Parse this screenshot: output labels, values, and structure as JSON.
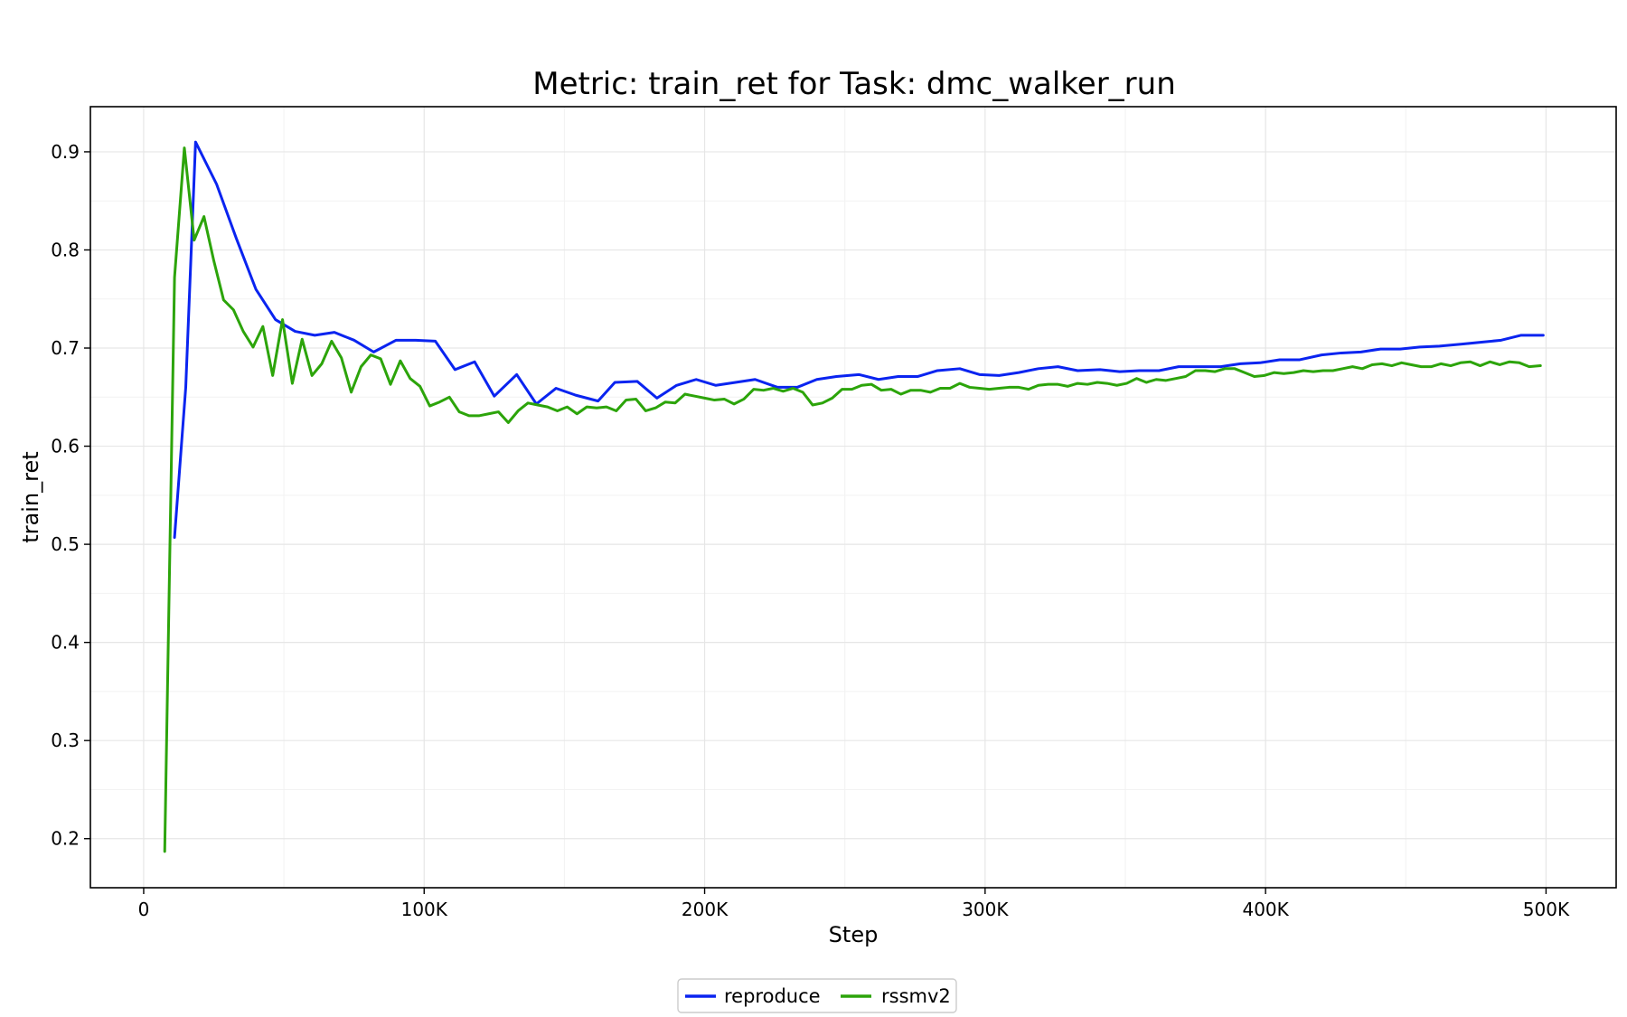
{
  "chart_data": {
    "type": "line",
    "title": "Metric: train_ret for Task: dmc_walker_run",
    "xlabel": "Step",
    "ylabel": "train_ret",
    "xlim": [
      -19000,
      525000
    ],
    "ylim": [
      0.15,
      0.946
    ],
    "grid": true,
    "legend_position": "bottom-center",
    "x_ticks": [
      0,
      100000,
      200000,
      300000,
      400000,
      500000
    ],
    "x_tick_labels": [
      "0",
      "100K",
      "200K",
      "300K",
      "400K",
      "500K"
    ],
    "y_ticks": [
      0.2,
      0.3,
      0.4,
      0.5,
      0.6,
      0.7,
      0.8,
      0.9
    ],
    "y_tick_labels": [
      "0.2",
      "0.3",
      "0.4",
      "0.5",
      "0.6",
      "0.7",
      "0.8",
      "0.9"
    ],
    "series": [
      {
        "name": "reproduce",
        "color": "#0a24f0",
        "points": [
          [
            11000,
            0.507
          ],
          [
            15000,
            0.66
          ],
          [
            18500,
            0.91
          ],
          [
            26000,
            0.867
          ],
          [
            33000,
            0.812
          ],
          [
            40000,
            0.76
          ],
          [
            47000,
            0.729
          ],
          [
            54000,
            0.717
          ],
          [
            61000,
            0.713
          ],
          [
            68000,
            0.716
          ],
          [
            75000,
            0.708
          ],
          [
            82000,
            0.696
          ],
          [
            90000,
            0.708
          ],
          [
            97000,
            0.708
          ],
          [
            104000,
            0.707
          ],
          [
            111000,
            0.678
          ],
          [
            118000,
            0.686
          ],
          [
            125000,
            0.651
          ],
          [
            133000,
            0.673
          ],
          [
            140000,
            0.643
          ],
          [
            147000,
            0.659
          ],
          [
            154000,
            0.652
          ],
          [
            162000,
            0.646
          ],
          [
            168000,
            0.665
          ],
          [
            176000,
            0.666
          ],
          [
            183000,
            0.649
          ],
          [
            190000,
            0.662
          ],
          [
            197000,
            0.668
          ],
          [
            204000,
            0.662
          ],
          [
            211000,
            0.665
          ],
          [
            218000,
            0.668
          ],
          [
            226000,
            0.66
          ],
          [
            233000,
            0.66
          ],
          [
            240000,
            0.668
          ],
          [
            247000,
            0.671
          ],
          [
            255000,
            0.673
          ],
          [
            262000,
            0.668
          ],
          [
            269000,
            0.671
          ],
          [
            276000,
            0.671
          ],
          [
            283000,
            0.677
          ],
          [
            291000,
            0.679
          ],
          [
            298000,
            0.673
          ],
          [
            305000,
            0.672
          ],
          [
            312000,
            0.675
          ],
          [
            319000,
            0.679
          ],
          [
            326000,
            0.681
          ],
          [
            333000,
            0.677
          ],
          [
            341000,
            0.678
          ],
          [
            348000,
            0.676
          ],
          [
            355000,
            0.677
          ],
          [
            362000,
            0.677
          ],
          [
            369000,
            0.681
          ],
          [
            377000,
            0.681
          ],
          [
            384000,
            0.681
          ],
          [
            391000,
            0.684
          ],
          [
            398000,
            0.685
          ],
          [
            405000,
            0.688
          ],
          [
            412000,
            0.688
          ],
          [
            420000,
            0.693
          ],
          [
            427000,
            0.695
          ],
          [
            434000,
            0.696
          ],
          [
            441000,
            0.699
          ],
          [
            448000,
            0.699
          ],
          [
            455000,
            0.701
          ],
          [
            462000,
            0.702
          ],
          [
            470000,
            0.704
          ],
          [
            477000,
            0.706
          ],
          [
            484000,
            0.708
          ],
          [
            491000,
            0.713
          ],
          [
            499000,
            0.713
          ]
        ]
      },
      {
        "name": "rssmv2",
        "color": "#2ca40a",
        "points": [
          [
            7500,
            0.187
          ],
          [
            11000,
            0.772
          ],
          [
            14500,
            0.904
          ],
          [
            18000,
            0.81
          ],
          [
            21500,
            0.834
          ],
          [
            25000,
            0.789
          ],
          [
            28500,
            0.749
          ],
          [
            32000,
            0.739
          ],
          [
            35500,
            0.717
          ],
          [
            39000,
            0.701
          ],
          [
            42500,
            0.722
          ],
          [
            46000,
            0.672
          ],
          [
            49500,
            0.729
          ],
          [
            53000,
            0.664
          ],
          [
            56500,
            0.709
          ],
          [
            60000,
            0.672
          ],
          [
            63500,
            0.684
          ],
          [
            67000,
            0.707
          ],
          [
            70500,
            0.69
          ],
          [
            74000,
            0.655
          ],
          [
            77500,
            0.681
          ],
          [
            81000,
            0.693
          ],
          [
            84500,
            0.689
          ],
          [
            88000,
            0.663
          ],
          [
            91500,
            0.687
          ],
          [
            95000,
            0.669
          ],
          [
            98500,
            0.661
          ],
          [
            102000,
            0.641
          ],
          [
            105500,
            0.645
          ],
          [
            109000,
            0.65
          ],
          [
            112500,
            0.635
          ],
          [
            116000,
            0.631
          ],
          [
            119500,
            0.631
          ],
          [
            123000,
            0.633
          ],
          [
            126500,
            0.635
          ],
          [
            130000,
            0.624
          ],
          [
            133500,
            0.636
          ],
          [
            137000,
            0.644
          ],
          [
            140500,
            0.642
          ],
          [
            144000,
            0.64
          ],
          [
            147500,
            0.636
          ],
          [
            151000,
            0.64
          ],
          [
            154500,
            0.633
          ],
          [
            158000,
            0.64
          ],
          [
            161500,
            0.639
          ],
          [
            165000,
            0.64
          ],
          [
            168500,
            0.636
          ],
          [
            172000,
            0.647
          ],
          [
            175500,
            0.648
          ],
          [
            179000,
            0.636
          ],
          [
            182500,
            0.639
          ],
          [
            186000,
            0.645
          ],
          [
            189500,
            0.644
          ],
          [
            193000,
            0.653
          ],
          [
            196500,
            0.651
          ],
          [
            200000,
            0.649
          ],
          [
            203500,
            0.647
          ],
          [
            207000,
            0.648
          ],
          [
            210500,
            0.643
          ],
          [
            214000,
            0.648
          ],
          [
            217500,
            0.658
          ],
          [
            221000,
            0.657
          ],
          [
            224500,
            0.659
          ],
          [
            228000,
            0.656
          ],
          [
            231500,
            0.659
          ],
          [
            235000,
            0.655
          ],
          [
            238500,
            0.642
          ],
          [
            242000,
            0.644
          ],
          [
            245500,
            0.649
          ],
          [
            249000,
            0.658
          ],
          [
            252500,
            0.658
          ],
          [
            256000,
            0.662
          ],
          [
            259500,
            0.663
          ],
          [
            263000,
            0.657
          ],
          [
            266500,
            0.658
          ],
          [
            270000,
            0.653
          ],
          [
            273500,
            0.657
          ],
          [
            277000,
            0.657
          ],
          [
            280500,
            0.655
          ],
          [
            284000,
            0.659
          ],
          [
            287500,
            0.659
          ],
          [
            291000,
            0.664
          ],
          [
            294500,
            0.66
          ],
          [
            298000,
            0.659
          ],
          [
            301500,
            0.658
          ],
          [
            305000,
            0.659
          ],
          [
            308500,
            0.66
          ],
          [
            312000,
            0.66
          ],
          [
            315500,
            0.658
          ],
          [
            319000,
            0.662
          ],
          [
            322500,
            0.663
          ],
          [
            326000,
            0.663
          ],
          [
            329500,
            0.661
          ],
          [
            333000,
            0.664
          ],
          [
            336500,
            0.663
          ],
          [
            340000,
            0.665
          ],
          [
            343500,
            0.664
          ],
          [
            347000,
            0.662
          ],
          [
            350500,
            0.664
          ],
          [
            354000,
            0.669
          ],
          [
            357500,
            0.665
          ],
          [
            361000,
            0.668
          ],
          [
            364500,
            0.667
          ],
          [
            368000,
            0.669
          ],
          [
            371500,
            0.671
          ],
          [
            375000,
            0.677
          ],
          [
            378500,
            0.677
          ],
          [
            382000,
            0.676
          ],
          [
            385500,
            0.679
          ],
          [
            389000,
            0.679
          ],
          [
            392500,
            0.675
          ],
          [
            396000,
            0.671
          ],
          [
            399500,
            0.672
          ],
          [
            403000,
            0.675
          ],
          [
            406500,
            0.674
          ],
          [
            410000,
            0.675
          ],
          [
            413500,
            0.677
          ],
          [
            417000,
            0.676
          ],
          [
            420500,
            0.677
          ],
          [
            424000,
            0.677
          ],
          [
            427500,
            0.679
          ],
          [
            431000,
            0.681
          ],
          [
            434500,
            0.679
          ],
          [
            438000,
            0.683
          ],
          [
            441500,
            0.684
          ],
          [
            445000,
            0.682
          ],
          [
            448500,
            0.685
          ],
          [
            452000,
            0.683
          ],
          [
            455500,
            0.681
          ],
          [
            459000,
            0.681
          ],
          [
            462500,
            0.684
          ],
          [
            466000,
            0.682
          ],
          [
            469500,
            0.685
          ],
          [
            473000,
            0.686
          ],
          [
            476500,
            0.682
          ],
          [
            480000,
            0.686
          ],
          [
            483500,
            0.683
          ],
          [
            487000,
            0.686
          ],
          [
            490500,
            0.685
          ],
          [
            494000,
            0.681
          ],
          [
            498000,
            0.682
          ]
        ]
      }
    ]
  }
}
